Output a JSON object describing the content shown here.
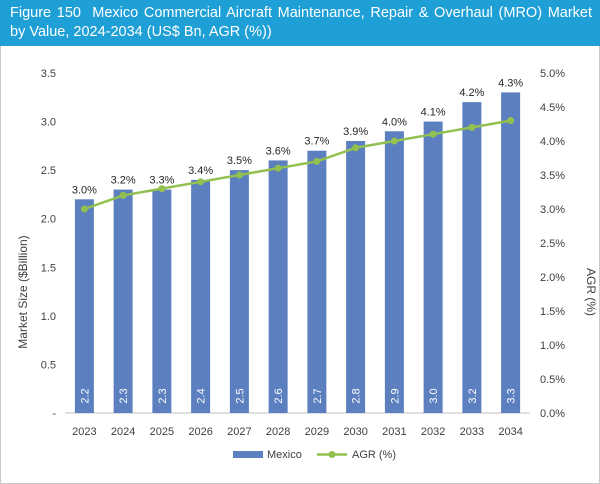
{
  "figure_label": "Figure 150",
  "title": "Mexico Commercial Aircraft Maintenance, Repair & Overhaul (MRO) Market by Value, 2024-2034 (US$ Bn, AGR (%))",
  "chart_data": {
    "type": "bar",
    "categories": [
      "2023",
      "2024",
      "2025",
      "2026",
      "2027",
      "2028",
      "2029",
      "2030",
      "2031",
      "2032",
      "2033",
      "2034"
    ],
    "series": [
      {
        "name": "Mexico",
        "kind": "bar",
        "axis": "left",
        "color": "#5b7fbf",
        "values": [
          2.2,
          2.3,
          2.3,
          2.4,
          2.5,
          2.6,
          2.7,
          2.8,
          2.9,
          3.0,
          3.2,
          3.3
        ],
        "labels": [
          "2.2",
          "2.3",
          "2.3",
          "2.4",
          "2.5",
          "2.6",
          "2.7",
          "2.8",
          "2.9",
          "3.0",
          "3.2",
          "3.3"
        ]
      },
      {
        "name": "AGR (%)",
        "kind": "line",
        "axis": "right",
        "color": "#92c14f",
        "values": [
          3.0,
          3.2,
          3.3,
          3.4,
          3.5,
          3.6,
          3.7,
          3.9,
          4.0,
          4.1,
          4.2,
          4.3
        ],
        "labels": [
          "3.0%",
          "3.2%",
          "3.3%",
          "3.4%",
          "3.5%",
          "3.6%",
          "3.7%",
          "3.9%",
          "4.0%",
          "4.1%",
          "4.2%",
          "4.3%"
        ]
      }
    ],
    "y_left": {
      "label": "Market Size ($Billion)",
      "range": [
        0,
        3.5
      ],
      "ticks": [
        "-",
        "0.5",
        "1.0",
        "1.5",
        "2.0",
        "2.5",
        "3.0",
        "3.5"
      ]
    },
    "y_right": {
      "label": "AGR (%)",
      "range": [
        0,
        5
      ],
      "ticks": [
        "0.0%",
        "0.5%",
        "1.0%",
        "1.5%",
        "2.0%",
        "2.5%",
        "3.0%",
        "3.5%",
        "4.0%",
        "4.5%",
        "5.0%"
      ]
    },
    "grid": false,
    "legend": {
      "position": "bottom",
      "items": [
        "Mexico",
        "AGR (%)"
      ]
    }
  }
}
